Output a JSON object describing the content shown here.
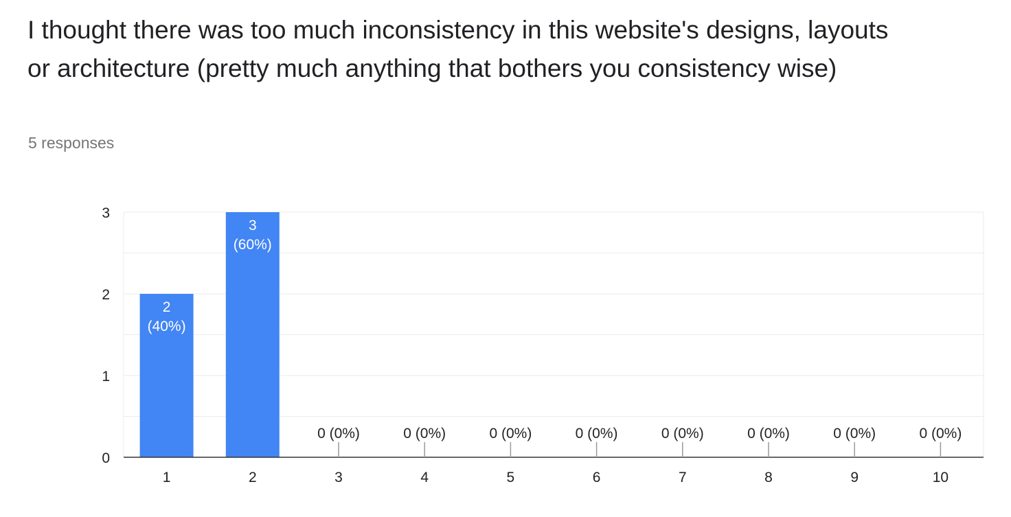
{
  "question": {
    "title": "I thought there was too much inconsistency in this website's designs, layouts or architecture (pretty much anything that bothers you consistency wise)",
    "responses_label": "5 responses"
  },
  "colors": {
    "bar": "#4285f4",
    "grid": "#ebebeb",
    "axis": "#333333",
    "text": "#222222",
    "bar_label": "#ffffff"
  },
  "chart_data": {
    "type": "bar",
    "title": "",
    "xlabel": "",
    "ylabel": "",
    "categories": [
      "1",
      "2",
      "3",
      "4",
      "5",
      "6",
      "7",
      "8",
      "9",
      "10"
    ],
    "values": [
      2,
      3,
      0,
      0,
      0,
      0,
      0,
      0,
      0,
      0
    ],
    "data_labels": [
      "2",
      "3",
      "0 (0%)",
      "0 (0%)",
      "0 (0%)",
      "0 (0%)",
      "0 (0%)",
      "0 (0%)",
      "0 (0%)",
      "0 (0%)"
    ],
    "data_label_percents": [
      "(40%)",
      "(60%)",
      "",
      "",
      "",
      "",
      "",
      "",
      "",
      ""
    ],
    "ylim": [
      0,
      3
    ],
    "yticks": [
      "0",
      "1",
      "2",
      "3"
    ],
    "grid": true,
    "legend": "none"
  }
}
